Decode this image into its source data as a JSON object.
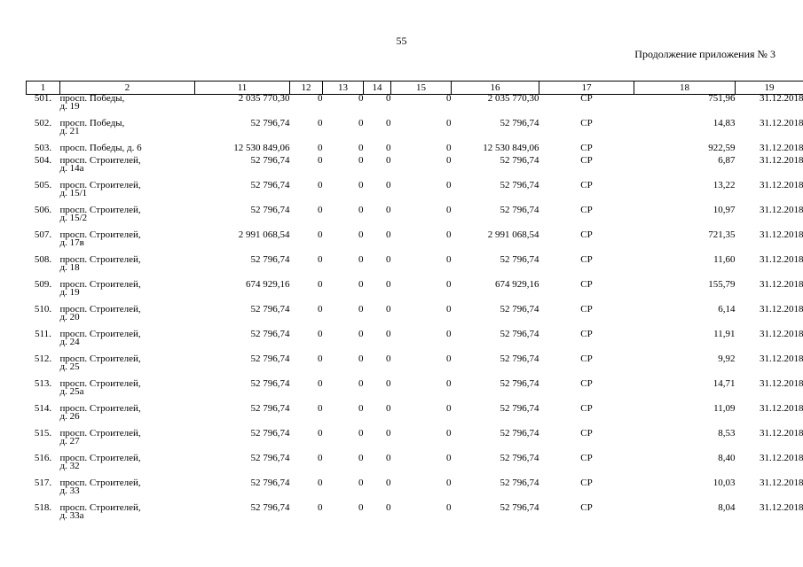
{
  "page_number": "55",
  "subtitle": "Продолжение приложения № 3",
  "columns": [
    "1",
    "2",
    "11",
    "12",
    "13",
    "14",
    "15",
    "16",
    "17",
    "18",
    "19"
  ],
  "rows": [
    {
      "n": "501.",
      "addr1": "просп. Победы,",
      "addr2": "д. 19",
      "c11": "2 035 770,30",
      "c12": "0",
      "c13": "0",
      "c14": "0",
      "c15": "0",
      "c16": "2 035 770,30",
      "c17": "СР",
      "c18": "751,96",
      "c19": "31.12.2018"
    },
    {
      "n": "502.",
      "addr1": "просп. Победы,",
      "addr2": "д. 21",
      "c11": "52 796,74",
      "c12": "0",
      "c13": "0",
      "c14": "0",
      "c15": "0",
      "c16": "52 796,74",
      "c17": "СР",
      "c18": "14,83",
      "c19": "31.12.2018"
    },
    {
      "n": "503.",
      "addr1": "просп. Победы, д. 6",
      "addr2": "",
      "c11": "12 530 849,06",
      "c12": "0",
      "c13": "0",
      "c14": "0",
      "c15": "0",
      "c16": "12 530 849,06",
      "c17": "СР",
      "c18": "922,59",
      "c19": "31.12.2018"
    },
    {
      "n": "504.",
      "addr1": "просп. Строителей,",
      "addr2": "д. 14а",
      "c11": "52 796,74",
      "c12": "0",
      "c13": "0",
      "c14": "0",
      "c15": "0",
      "c16": "52 796,74",
      "c17": "СР",
      "c18": "6,87",
      "c19": "31.12.2018"
    },
    {
      "n": "505.",
      "addr1": "просп. Строителей,",
      "addr2": "д. 15/1",
      "c11": "52 796,74",
      "c12": "0",
      "c13": "0",
      "c14": "0",
      "c15": "0",
      "c16": "52 796,74",
      "c17": "СР",
      "c18": "13,22",
      "c19": "31.12.2018"
    },
    {
      "n": "506.",
      "addr1": "просп. Строителей,",
      "addr2": "д. 15/2",
      "c11": "52 796,74",
      "c12": "0",
      "c13": "0",
      "c14": "0",
      "c15": "0",
      "c16": "52 796,74",
      "c17": "СР",
      "c18": "10,97",
      "c19": "31.12.2018"
    },
    {
      "n": "507.",
      "addr1": "просп. Строителей,",
      "addr2": "д. 17в",
      "c11": "2 991 068,54",
      "c12": "0",
      "c13": "0",
      "c14": "0",
      "c15": "0",
      "c16": "2 991 068,54",
      "c17": "СР",
      "c18": "721,35",
      "c19": "31.12.2018"
    },
    {
      "n": "508.",
      "addr1": "просп. Строителей,",
      "addr2": "д. 18",
      "c11": "52 796,74",
      "c12": "0",
      "c13": "0",
      "c14": "0",
      "c15": "0",
      "c16": "52 796,74",
      "c17": "СР",
      "c18": "11,60",
      "c19": "31.12.2018"
    },
    {
      "n": "509.",
      "addr1": "просп. Строителей,",
      "addr2": "д. 19",
      "c11": "674 929,16",
      "c12": "0",
      "c13": "0",
      "c14": "0",
      "c15": "0",
      "c16": "674 929,16",
      "c17": "СР",
      "c18": "155,79",
      "c19": "31.12.2018"
    },
    {
      "n": "510.",
      "addr1": "просп. Строителей,",
      "addr2": "д. 20",
      "c11": "52 796,74",
      "c12": "0",
      "c13": "0",
      "c14": "0",
      "c15": "0",
      "c16": "52 796,74",
      "c17": "СР",
      "c18": "6,14",
      "c19": "31.12.2018"
    },
    {
      "n": "511.",
      "addr1": "просп. Строителей,",
      "addr2": "д. 24",
      "c11": "52 796,74",
      "c12": "0",
      "c13": "0",
      "c14": "0",
      "c15": "0",
      "c16": "52 796,74",
      "c17": "СР",
      "c18": "11,91",
      "c19": "31.12.2018"
    },
    {
      "n": "512.",
      "addr1": "просп. Строителей,",
      "addr2": "д. 25",
      "c11": "52 796,74",
      "c12": "0",
      "c13": "0",
      "c14": "0",
      "c15": "0",
      "c16": "52 796,74",
      "c17": "СР",
      "c18": "9,92",
      "c19": "31.12.2018"
    },
    {
      "n": "513.",
      "addr1": "просп. Строителей,",
      "addr2": "д. 25а",
      "c11": "52 796,74",
      "c12": "0",
      "c13": "0",
      "c14": "0",
      "c15": "0",
      "c16": "52 796,74",
      "c17": "СР",
      "c18": "14,71",
      "c19": "31.12.2018"
    },
    {
      "n": "514.",
      "addr1": "просп. Строителей,",
      "addr2": "д. 26",
      "c11": "52 796,74",
      "c12": "0",
      "c13": "0",
      "c14": "0",
      "c15": "0",
      "c16": "52 796,74",
      "c17": "СР",
      "c18": "11,09",
      "c19": "31.12.2018"
    },
    {
      "n": "515.",
      "addr1": "просп. Строителей,",
      "addr2": "д. 27",
      "c11": "52 796,74",
      "c12": "0",
      "c13": "0",
      "c14": "0",
      "c15": "0",
      "c16": "52 796,74",
      "c17": "СР",
      "c18": "8,53",
      "c19": "31.12.2018"
    },
    {
      "n": "516.",
      "addr1": "просп. Строителей,",
      "addr2": "д. 32",
      "c11": "52 796,74",
      "c12": "0",
      "c13": "0",
      "c14": "0",
      "c15": "0",
      "c16": "52 796,74",
      "c17": "СР",
      "c18": "8,40",
      "c19": "31.12.2018"
    },
    {
      "n": "517.",
      "addr1": "просп. Строителей,",
      "addr2": "д. 33",
      "c11": "52 796,74",
      "c12": "0",
      "c13": "0",
      "c14": "0",
      "c15": "0",
      "c16": "52 796,74",
      "c17": "СР",
      "c18": "10,03",
      "c19": "31.12.2018"
    },
    {
      "n": "518.",
      "addr1": "просп. Строителей,",
      "addr2": "д. 33а",
      "c11": "52 796,74",
      "c12": "0",
      "c13": "0",
      "c14": "0",
      "c15": "0",
      "c16": "52 796,74",
      "c17": "СР",
      "c18": "8,04",
      "c19": "31.12.2018"
    }
  ]
}
